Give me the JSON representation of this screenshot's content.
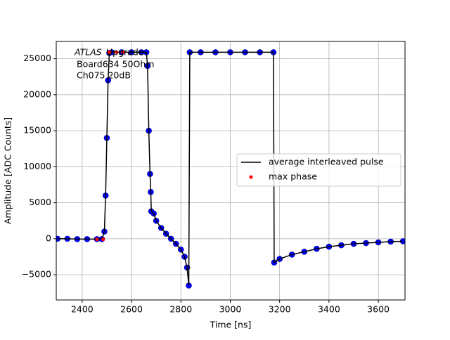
{
  "chart_data": {
    "type": "line",
    "xlabel": "Time [ns]",
    "ylabel": "Amplitude [ADC Counts]",
    "annotation": [
      "ATLAS",
      "Upgrade",
      "Board634 50Ohm",
      "Ch075 20dB"
    ],
    "xlim": [
      2295,
      3708
    ],
    "ylim": [
      -8500,
      27400
    ],
    "xticks": [
      2400,
      2600,
      2800,
      3000,
      3200,
      3400,
      3600
    ],
    "yticks": [
      {
        "value": -5000,
        "label": "−5000"
      },
      0,
      5000,
      10000,
      15000,
      20000,
      25000
    ],
    "grid": true,
    "legend": "center right",
    "series": [
      {
        "name": "average interleaved pulse",
        "color": "#000000",
        "marker_color": "#0000ff",
        "x": [
          2300,
          2340,
          2380,
          2420,
          2460,
          2480,
          2490,
          2495,
          2500,
          2505,
          2510,
          2520,
          2560,
          2600,
          2640,
          2660,
          2665,
          2670,
          2675,
          2678,
          2680,
          2690,
          2700,
          2720,
          2740,
          2760,
          2780,
          2800,
          2815,
          2825,
          2832,
          2836,
          2880,
          2940,
          3000,
          3060,
          3120,
          3175,
          3178,
          3200,
          3250,
          3300,
          3350,
          3400,
          3450,
          3500,
          3550,
          3600,
          3650,
          3700
        ],
        "values": [
          0,
          0,
          -50,
          -50,
          -50,
          -50,
          1000,
          6000,
          14000,
          22000,
          25800,
          25900,
          25900,
          25900,
          25900,
          25900,
          24000,
          15000,
          9000,
          6500,
          3800,
          3500,
          2500,
          1500,
          700,
          0,
          -700,
          -1500,
          -2500,
          -4000,
          -6500,
          25900,
          25900,
          25900,
          25900,
          25900,
          25900,
          25900,
          -3300,
          -2800,
          -2200,
          -1800,
          -1400,
          -1100,
          -900,
          -700,
          -600,
          -500,
          -400,
          -350
        ]
      },
      {
        "name": "max phase",
        "type": "scatter",
        "color": "#ff0000",
        "x": [
          2460,
          2485,
          2510,
          2540,
          2565
        ],
        "values": [
          -100,
          -100,
          25900,
          25900,
          25900
        ]
      }
    ]
  }
}
